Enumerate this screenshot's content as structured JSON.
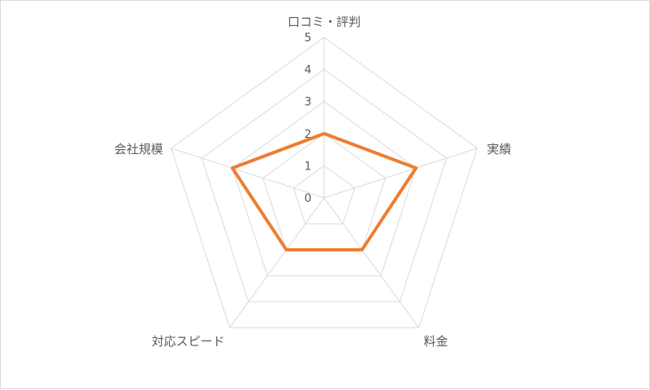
{
  "chart_data": {
    "type": "radar",
    "categories": [
      "口コミ・評判",
      "実績",
      "料金",
      "対応スピード",
      "会社規模"
    ],
    "series": [
      {
        "values": [
          2,
          3,
          2,
          2,
          3
        ]
      }
    ],
    "rlim": [
      0,
      5
    ],
    "ticks": [
      "0",
      "1",
      "2",
      "3",
      "4",
      "5"
    ],
    "grid": true,
    "colors": {
      "series": "#ed7d31",
      "grid": "#d9d9d9",
      "text": "#595959"
    }
  }
}
